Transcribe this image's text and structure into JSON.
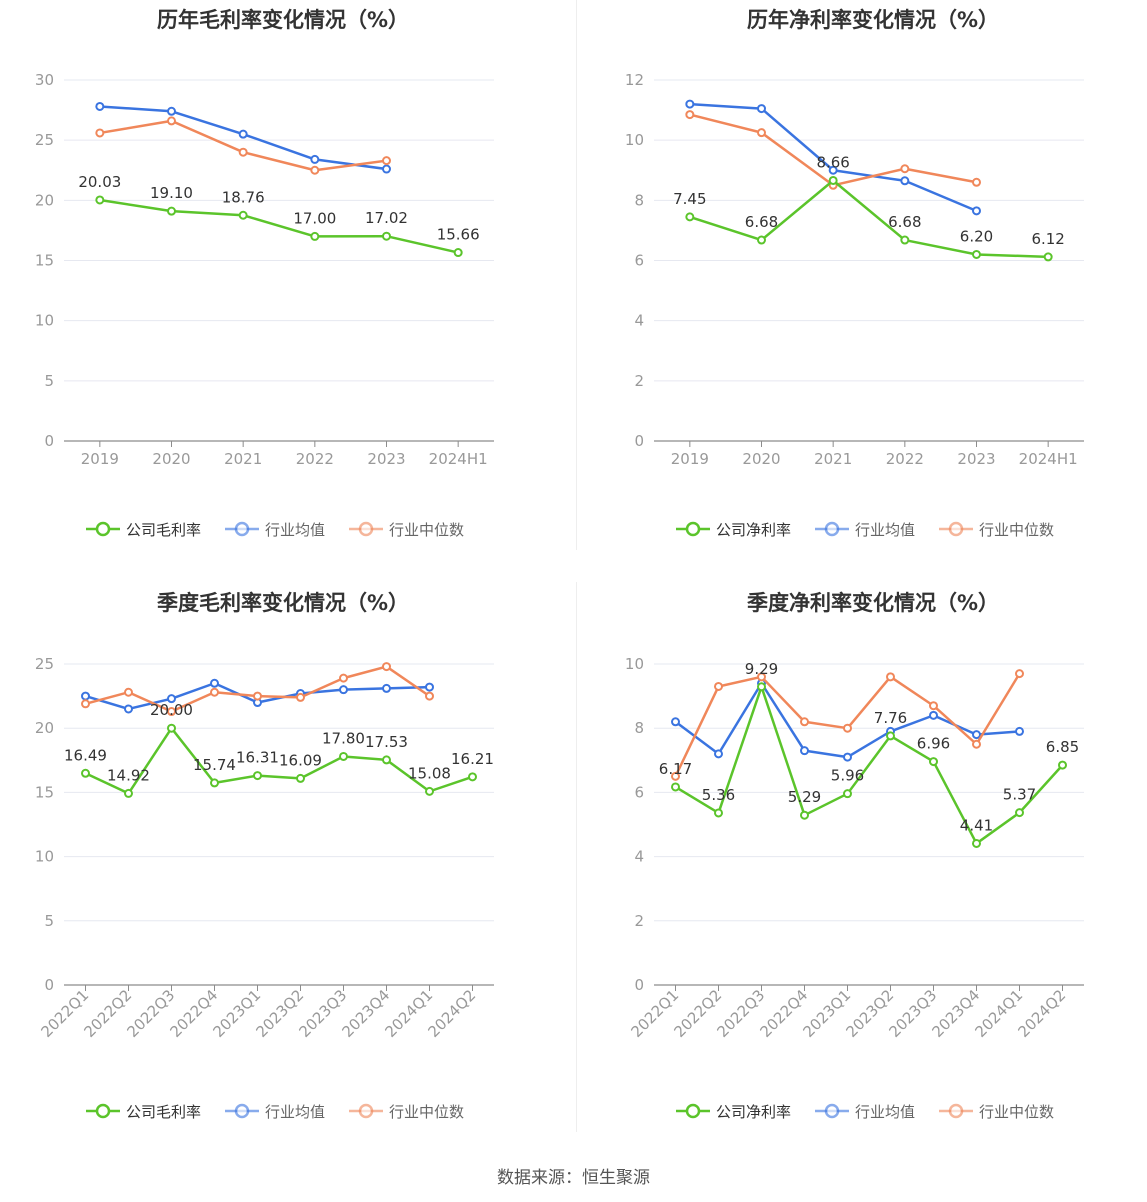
{
  "colors": {
    "company": "#5bc42b",
    "avg": "#3a74e0",
    "median": "#f0875a",
    "grid": "#e6e8f0",
    "axis": "#999999",
    "text": "#333333",
    "label": "#666666"
  },
  "source_label": "数据来源：恒生聚源",
  "chart_data": [
    {
      "type": "line",
      "title": "历年毛利率变化情况（%）",
      "categories": [
        "2019",
        "2020",
        "2021",
        "2022",
        "2023",
        "2024H1"
      ],
      "ylim": [
        0,
        30
      ],
      "yticks": [
        0,
        5,
        10,
        15,
        20,
        25,
        30
      ],
      "grid": true,
      "legend_position": "bottom",
      "series": [
        {
          "name": "公司毛利率",
          "color": "#5bc42b",
          "values": [
            20.03,
            19.1,
            18.76,
            17.0,
            17.02,
            15.66
          ],
          "labels": [
            "20.03",
            "19.10",
            "18.76",
            "17.00",
            "17.02",
            "15.66"
          ]
        },
        {
          "name": "行业均值",
          "color": "#3a74e0",
          "values": [
            27.8,
            27.4,
            25.5,
            23.4,
            22.6,
            null
          ]
        },
        {
          "name": "行业中位数",
          "color": "#f0875a",
          "values": [
            25.6,
            26.6,
            24.0,
            22.5,
            23.3,
            null
          ]
        }
      ]
    },
    {
      "type": "line",
      "title": "历年净利率变化情况（%）",
      "categories": [
        "2019",
        "2020",
        "2021",
        "2022",
        "2023",
        "2024H1"
      ],
      "ylim": [
        0,
        12
      ],
      "yticks": [
        0,
        2,
        4,
        6,
        8,
        10,
        12
      ],
      "grid": true,
      "legend_position": "bottom",
      "series": [
        {
          "name": "公司净利率",
          "color": "#5bc42b",
          "values": [
            7.45,
            6.68,
            8.66,
            6.68,
            6.2,
            6.12
          ],
          "labels": [
            "7.45",
            "6.68",
            "8.66",
            "6.68",
            "6.20",
            "6.12"
          ]
        },
        {
          "name": "行业均值",
          "color": "#3a74e0",
          "values": [
            11.2,
            11.05,
            9.0,
            8.65,
            7.65,
            null
          ]
        },
        {
          "name": "行业中位数",
          "color": "#f0875a",
          "values": [
            10.85,
            10.25,
            8.5,
            9.05,
            8.6,
            null
          ]
        }
      ]
    },
    {
      "type": "line",
      "title": "季度毛利率变化情况（%）",
      "categories": [
        "2022Q1",
        "2022Q2",
        "2022Q3",
        "2022Q4",
        "2023Q1",
        "2023Q2",
        "2023Q3",
        "2023Q4",
        "2024Q1",
        "2024Q2"
      ],
      "ylim": [
        0,
        25
      ],
      "yticks": [
        0,
        5,
        10,
        15,
        20,
        25
      ],
      "grid": true,
      "legend_position": "bottom",
      "series": [
        {
          "name": "公司毛利率",
          "color": "#5bc42b",
          "values": [
            16.49,
            14.92,
            20.0,
            15.74,
            16.31,
            16.09,
            17.8,
            17.53,
            15.08,
            16.21
          ],
          "labels": [
            "16.49",
            "14.92",
            "20.00",
            "15.74",
            "16.31",
            "16.09",
            "17.80",
            "17.53",
            "15.08",
            "16.21"
          ]
        },
        {
          "name": "行业均值",
          "color": "#3a74e0",
          "values": [
            22.5,
            21.5,
            22.3,
            23.5,
            22.0,
            22.7,
            23.0,
            23.1,
            23.2,
            null
          ]
        },
        {
          "name": "行业中位数",
          "color": "#f0875a",
          "values": [
            21.9,
            22.8,
            21.3,
            22.8,
            22.5,
            22.4,
            23.9,
            24.8,
            22.5,
            null
          ]
        }
      ]
    },
    {
      "type": "line",
      "title": "季度净利率变化情况（%）",
      "categories": [
        "2022Q1",
        "2022Q2",
        "2022Q3",
        "2022Q4",
        "2023Q1",
        "2023Q2",
        "2023Q3",
        "2023Q4",
        "2024Q1",
        "2024Q2"
      ],
      "ylim": [
        0,
        10
      ],
      "yticks": [
        0,
        2,
        4,
        6,
        8,
        10
      ],
      "grid": true,
      "legend_position": "bottom",
      "series": [
        {
          "name": "公司净利率",
          "color": "#5bc42b",
          "values": [
            6.17,
            5.36,
            9.29,
            5.29,
            5.96,
            7.76,
            6.96,
            4.41,
            5.37,
            6.85
          ],
          "labels": [
            "6.17",
            "5.36",
            "9.29",
            "5.29",
            "5.96",
            "7.76",
            "6.96",
            "4.41",
            "5.37",
            "6.85"
          ]
        },
        {
          "name": "行业均值",
          "color": "#3a74e0",
          "values": [
            8.2,
            7.2,
            9.4,
            7.3,
            7.1,
            7.9,
            8.4,
            7.8,
            7.9,
            null
          ]
        },
        {
          "name": "行业中位数",
          "color": "#f0875a",
          "values": [
            6.5,
            9.3,
            9.6,
            8.2,
            8.0,
            9.6,
            8.7,
            7.5,
            9.7,
            null
          ]
        }
      ]
    }
  ]
}
